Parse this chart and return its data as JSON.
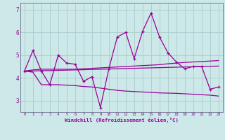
{
  "title": "",
  "xlabel": "Windchill (Refroidissement éolien,°C)",
  "background_color": "#cce8e8",
  "grid_color": "#aacccc",
  "line_color": "#990099",
  "x_values": [
    0,
    1,
    2,
    3,
    4,
    5,
    6,
    7,
    8,
    9,
    10,
    11,
    12,
    13,
    14,
    15,
    16,
    17,
    18,
    19,
    20,
    21,
    22,
    23
  ],
  "line1_y": [
    4.3,
    5.2,
    4.3,
    3.7,
    5.0,
    4.65,
    4.6,
    3.85,
    4.05,
    2.7,
    4.4,
    5.8,
    6.0,
    4.85,
    6.05,
    6.85,
    5.8,
    5.1,
    4.7,
    4.4,
    4.5,
    4.5,
    3.5,
    3.6
  ],
  "line2_y": [
    4.3,
    4.35,
    4.38,
    4.38,
    4.38,
    4.38,
    4.38,
    4.4,
    4.42,
    4.44,
    4.46,
    4.48,
    4.5,
    4.52,
    4.54,
    4.56,
    4.58,
    4.62,
    4.65,
    4.68,
    4.7,
    4.72,
    4.74,
    4.76
  ],
  "line3_y": [
    4.3,
    4.3,
    4.32,
    4.32,
    4.33,
    4.34,
    4.35,
    4.36,
    4.37,
    4.38,
    4.39,
    4.4,
    4.41,
    4.42,
    4.43,
    4.44,
    4.45,
    4.46,
    4.47,
    4.48,
    4.49,
    4.5,
    4.51,
    4.52
  ],
  "line4_y": [
    4.3,
    4.25,
    3.7,
    3.7,
    3.7,
    3.68,
    3.66,
    3.62,
    3.6,
    3.55,
    3.5,
    3.45,
    3.42,
    3.4,
    3.38,
    3.36,
    3.34,
    3.33,
    3.32,
    3.3,
    3.28,
    3.26,
    3.24,
    3.2
  ],
  "ylim": [
    2.5,
    7.3
  ],
  "xlim": [
    -0.5,
    23.5
  ],
  "yticks": [
    3,
    4,
    5,
    6,
    7
  ],
  "xticks": [
    0,
    1,
    2,
    3,
    4,
    5,
    6,
    7,
    8,
    9,
    10,
    11,
    12,
    13,
    14,
    15,
    16,
    17,
    18,
    19,
    20,
    21,
    22,
    23
  ]
}
